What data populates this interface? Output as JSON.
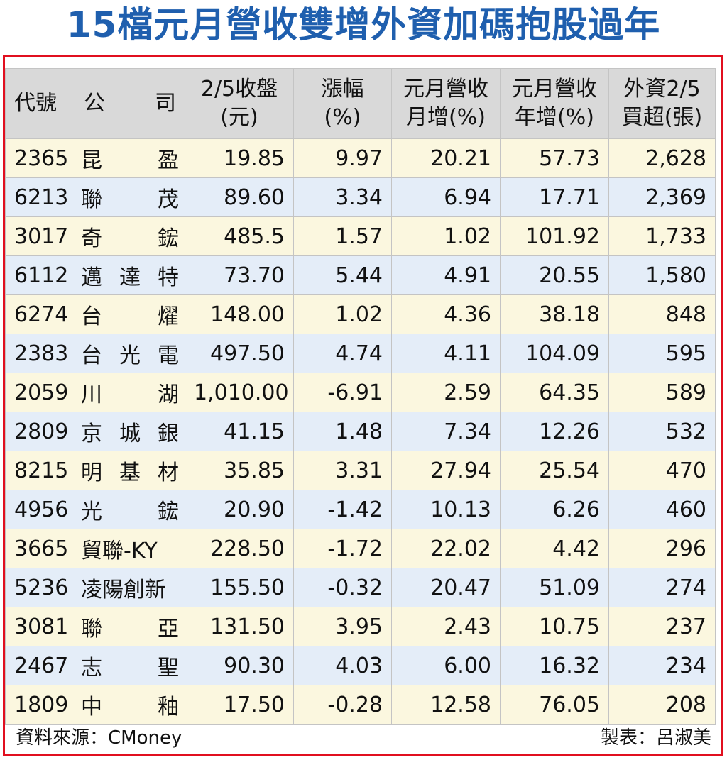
{
  "title": "15檔元月營收雙增外資加碼抱股過年",
  "table": {
    "headers": {
      "code": "代號",
      "name_a": "公",
      "name_b": "司",
      "close_1": "2/5收盤",
      "close_2": "(元)",
      "change_1": "漲幅",
      "change_2": "(%)",
      "mom_1": "元月營收",
      "mom_2": "月增(%)",
      "yoy_1": "元月營收",
      "yoy_2": "年增(%)",
      "foreign_1": "外資2/5",
      "foreign_2": "買超(張)"
    },
    "rows": [
      {
        "code": "2365",
        "name_parts": [
          "昆",
          "盈"
        ],
        "close": "19.85",
        "change": "9.97",
        "mom": "20.21",
        "yoy": "57.73",
        "foreign": "2,628"
      },
      {
        "code": "6213",
        "name_parts": [
          "聯",
          "茂"
        ],
        "close": "89.60",
        "change": "3.34",
        "mom": "6.94",
        "yoy": "17.71",
        "foreign": "2,369"
      },
      {
        "code": "3017",
        "name_parts": [
          "奇",
          "鋐"
        ],
        "close": "485.5",
        "change": "1.57",
        "mom": "1.02",
        "yoy": "101.92",
        "foreign": "1,733"
      },
      {
        "code": "6112",
        "name_parts": [
          "邁",
          "達",
          "特"
        ],
        "close": "73.70",
        "change": "5.44",
        "mom": "4.91",
        "yoy": "20.55",
        "foreign": "1,580"
      },
      {
        "code": "6274",
        "name_parts": [
          "台",
          "燿"
        ],
        "close": "148.00",
        "change": "1.02",
        "mom": "4.36",
        "yoy": "38.18",
        "foreign": "848"
      },
      {
        "code": "2383",
        "name_parts": [
          "台",
          "光",
          "電"
        ],
        "close": "497.50",
        "change": "4.74",
        "mom": "4.11",
        "yoy": "104.09",
        "foreign": "595"
      },
      {
        "code": "2059",
        "name_parts": [
          "川",
          "湖"
        ],
        "close": "1,010.00",
        "change": "-6.91",
        "mom": "2.59",
        "yoy": "64.35",
        "foreign": "589"
      },
      {
        "code": "2809",
        "name_parts": [
          "京",
          "城",
          "銀"
        ],
        "close": "41.15",
        "change": "1.48",
        "mom": "7.34",
        "yoy": "12.26",
        "foreign": "532"
      },
      {
        "code": "8215",
        "name_parts": [
          "明",
          "基",
          "材"
        ],
        "close": "35.85",
        "change": "3.31",
        "mom": "27.94",
        "yoy": "25.54",
        "foreign": "470"
      },
      {
        "code": "4956",
        "name_parts": [
          "光",
          "鋐"
        ],
        "close": "20.90",
        "change": "-1.42",
        "mom": "10.13",
        "yoy": "6.26",
        "foreign": "460"
      },
      {
        "code": "3665",
        "name_parts": [
          "貿聯-KY"
        ],
        "close": "228.50",
        "change": "-1.72",
        "mom": "22.02",
        "yoy": "4.42",
        "foreign": "296"
      },
      {
        "code": "5236",
        "name_parts": [
          "凌陽創新"
        ],
        "close": "155.50",
        "change": "-0.32",
        "mom": "20.47",
        "yoy": "51.09",
        "foreign": "274"
      },
      {
        "code": "3081",
        "name_parts": [
          "聯",
          "亞"
        ],
        "close": "131.50",
        "change": "3.95",
        "mom": "2.43",
        "yoy": "10.75",
        "foreign": "237"
      },
      {
        "code": "2467",
        "name_parts": [
          "志",
          "聖"
        ],
        "close": "90.30",
        "change": "4.03",
        "mom": "6.00",
        "yoy": "16.32",
        "foreign": "234"
      },
      {
        "code": "1809",
        "name_parts": [
          "中",
          "釉"
        ],
        "close": "17.50",
        "change": "-0.28",
        "mom": "12.58",
        "yoy": "76.05",
        "foreign": "208"
      }
    ]
  },
  "footer": {
    "source": "資料來源：CMoney",
    "maker": "製表：呂淑美"
  },
  "colors": {
    "title": "#1f5fae",
    "frame": "#e10f1f",
    "header_bg": "#d9d9d9",
    "row_odd": "#fbf7df",
    "row_even": "#e4edf8"
  }
}
